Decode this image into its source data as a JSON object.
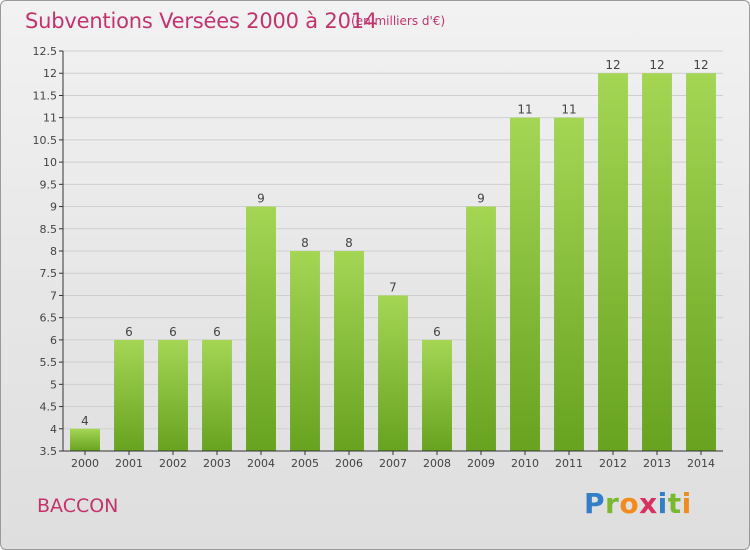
{
  "header": {
    "title": "Subventions Versées 2000 à 2014",
    "subtitle": "(en milliers d'€)"
  },
  "footer": {
    "commune": "BACCON",
    "logo": {
      "letters": [
        "P",
        "r",
        "o",
        "x",
        "i",
        "t",
        "i"
      ],
      "colors": [
        "#2f80c8",
        "#7ab830",
        "#f28a1c",
        "#d83060",
        "#2f80c8",
        "#7ab830",
        "#f28a1c"
      ]
    }
  },
  "colors": {
    "bar_light": "#a4d654",
    "bar_dark": "#67a31f",
    "axis": "#333333",
    "tick_text": "#444444",
    "grid": "#cfcfcf",
    "title": "#c4336c"
  },
  "chart_data": {
    "type": "bar",
    "title": "Subventions Versées 2000 à 2014",
    "subtitle": "(en milliers d'€)",
    "categories": [
      "2000",
      "2001",
      "2002",
      "2003",
      "2004",
      "2005",
      "2006",
      "2007",
      "2008",
      "2009",
      "2010",
      "2011",
      "2012",
      "2013",
      "2014"
    ],
    "values": [
      4,
      6,
      6,
      6,
      9,
      8,
      8,
      7,
      6,
      9,
      11,
      11,
      12,
      12,
      12
    ],
    "data_labels": [
      "4",
      "6",
      "6",
      "6",
      "9",
      "8",
      "8",
      "7",
      "6",
      "9",
      "11",
      "11",
      "12",
      "12",
      "12"
    ],
    "ylim": [
      3.5,
      12.5
    ],
    "yticks": [
      3.5,
      4,
      4.5,
      5,
      5.5,
      6,
      6.5,
      7,
      7.5,
      8,
      8.5,
      9,
      9.5,
      10,
      10.5,
      11,
      11.5,
      12,
      12.5
    ],
    "ytick_labels": [
      "3.5",
      "4",
      "4.5",
      "5",
      "5.5",
      "6",
      "6.5",
      "7",
      "7.5",
      "8",
      "8.5",
      "9",
      "9.5",
      "10",
      "10.5",
      "11",
      "11.5",
      "12",
      "12.5"
    ],
    "xlabel": "",
    "ylabel": "",
    "grid": true,
    "legend": "none"
  }
}
